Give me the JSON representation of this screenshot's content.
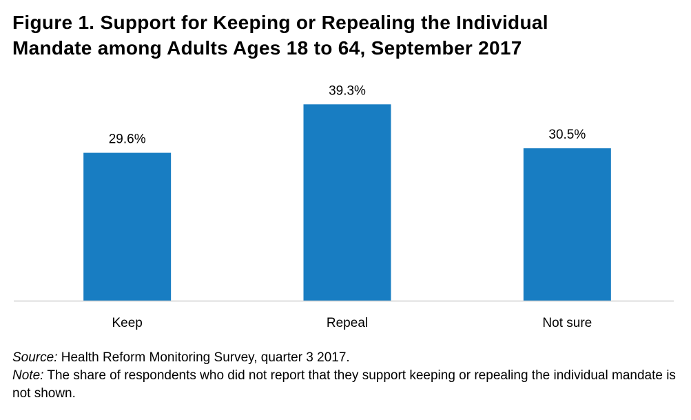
{
  "chart_data": {
    "type": "bar",
    "title_line1": "Figure 1. Support for Keeping or Repealing the Individual",
    "title_line2": "Mandate among Adults Ages 18 to 64, September 2017",
    "categories": [
      "Keep",
      "Repeal",
      "Not sure"
    ],
    "values": [
      29.6,
      39.3,
      30.5
    ],
    "data_labels": [
      "29.6%",
      "39.3%",
      "30.5%"
    ],
    "xlabel": "",
    "ylabel": "",
    "ylim": [
      0,
      45
    ],
    "grid": false,
    "bar_color": "#187dc2"
  },
  "footer": {
    "source_label": "Source:",
    "source_text": " Health Reform Monitoring Survey, quarter 3 2017.",
    "note_label": "Note:",
    "note_text": " The share of respondents who did not report that they support keeping or repealing the individual mandate is not shown."
  }
}
